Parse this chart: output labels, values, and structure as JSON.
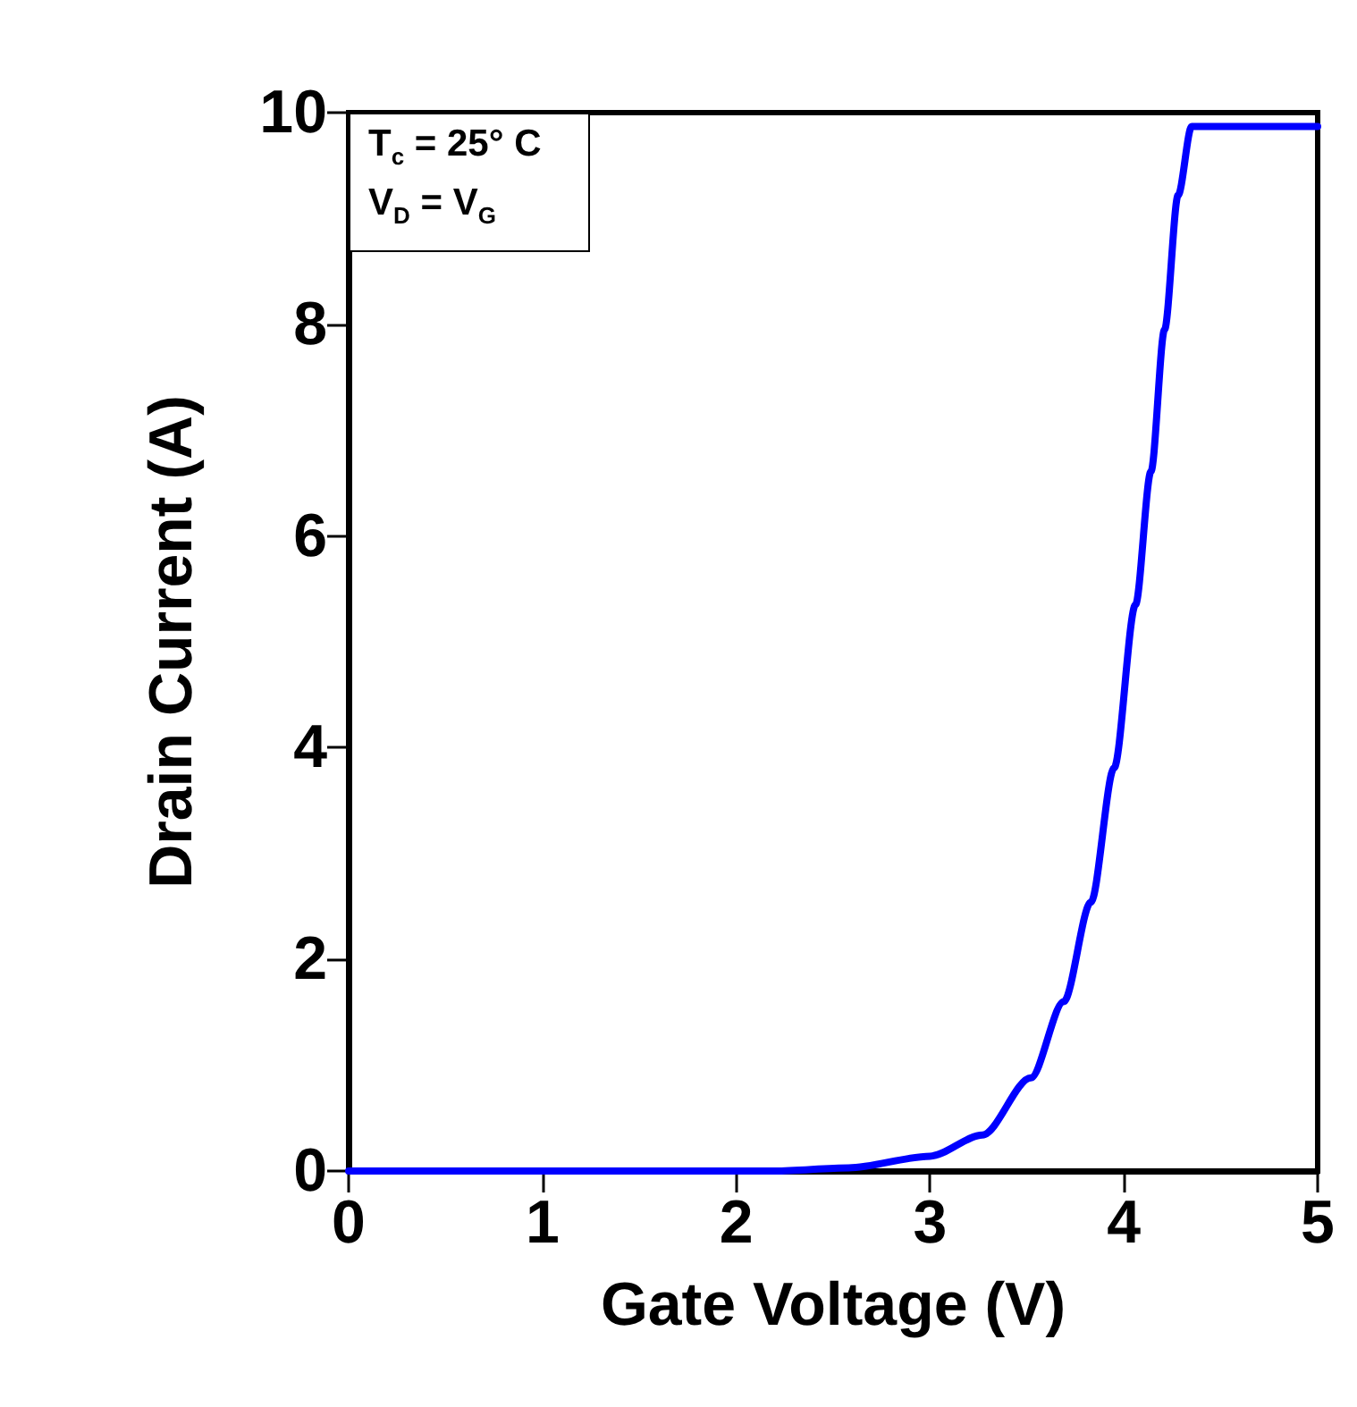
{
  "chart_data": {
    "type": "line",
    "xlabel": "Gate Voltage (V)",
    "ylabel": "Drain Current (A)",
    "annotations": [
      "T$_{c}$ = 25° C",
      "V$_{D}$ = V$_{G}$"
    ],
    "series": [
      {
        "color": "#0000ff",
        "x": [
          0,
          1,
          2,
          2.2,
          2.58,
          3.0,
          3.27,
          3.52,
          3.69,
          3.83,
          3.95,
          4.06,
          4.14,
          4.21,
          4.28,
          4.35,
          5
        ],
        "values": [
          0,
          0,
          0,
          0,
          0.03,
          0.14,
          0.34,
          0.88,
          1.6,
          2.54,
          3.81,
          5.35,
          6.61,
          7.95,
          9.22,
          9.87,
          9.87
        ]
      }
    ],
    "xlim": [
      0,
      5
    ],
    "xticks": [
      0,
      1,
      2,
      3,
      4,
      5
    ],
    "ylim": [
      0,
      10
    ],
    "yticks": [
      0,
      2,
      4,
      6,
      8,
      10
    ],
    "grid": false,
    "marker": "none",
    "line_style": "solid"
  }
}
